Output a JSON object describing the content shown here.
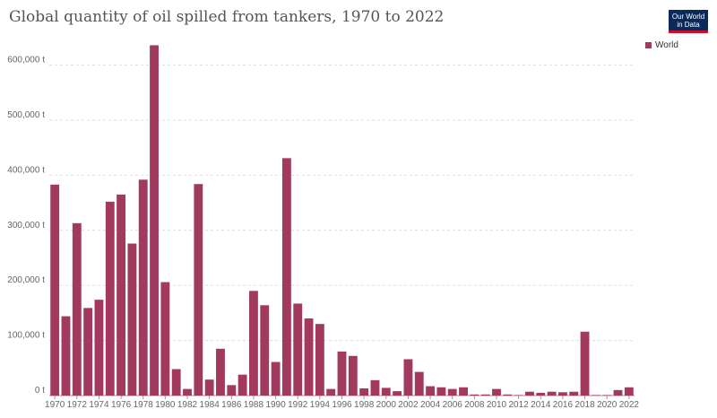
{
  "title": "Global quantity of oil spilled from tankers, 1970 to 2022",
  "logo": {
    "line1": "Our World",
    "line2": "in Data"
  },
  "legend": {
    "label": "World"
  },
  "colors": {
    "bar": "#a2395f",
    "grid": "#dddddd",
    "text": "#555555",
    "axis": "#999999"
  },
  "chart_data": {
    "type": "bar",
    "title": "Global quantity of oil spilled from tankers, 1970 to 2022",
    "xlabel": "",
    "ylabel": "",
    "ylim": [
      0,
      640000
    ],
    "yticks": [
      0,
      100000,
      200000,
      300000,
      400000,
      500000,
      600000
    ],
    "ytick_labels": [
      "0 t",
      "100,000 t",
      "200,000 t",
      "300,000 t",
      "400,000 t",
      "500,000 t",
      "600,000 t"
    ],
    "xtick_labels": [
      "1970",
      "1972",
      "1974",
      "1976",
      "1978",
      "1980",
      "1982",
      "1984",
      "1986",
      "1988",
      "1990",
      "1992",
      "1994",
      "1996",
      "1998",
      "2000",
      "2002",
      "2004",
      "2006",
      "2008",
      "2010",
      "2012",
      "2014",
      "2016",
      "2018",
      "2020",
      "2022"
    ],
    "grid": true,
    "legend_position": "top-right",
    "categories": [
      1970,
      1971,
      1972,
      1973,
      1974,
      1975,
      1976,
      1977,
      1978,
      1979,
      1980,
      1981,
      1982,
      1983,
      1984,
      1985,
      1986,
      1987,
      1988,
      1989,
      1990,
      1991,
      1992,
      1993,
      1994,
      1995,
      1996,
      1997,
      1998,
      1999,
      2000,
      2001,
      2002,
      2003,
      2004,
      2005,
      2006,
      2007,
      2008,
      2009,
      2010,
      2011,
      2012,
      2013,
      2014,
      2015,
      2016,
      2017,
      2018,
      2019,
      2020,
      2021,
      2022
    ],
    "series": [
      {
        "name": "World",
        "values": [
          383000,
          144000,
          313000,
          159000,
          174000,
          352000,
          365000,
          276000,
          392000,
          636000,
          206000,
          48000,
          12000,
          384000,
          29000,
          85000,
          19000,
          38000,
          190000,
          164000,
          61000,
          431000,
          167000,
          140000,
          130000,
          12000,
          80000,
          72000,
          13000,
          28000,
          14000,
          8000,
          66000,
          43000,
          17000,
          15000,
          12000,
          15000,
          2000,
          2000,
          12000,
          2000,
          1000,
          7000,
          5000,
          7000,
          6000,
          7000,
          116000,
          1000,
          1000,
          10000,
          15000
        ]
      }
    ]
  }
}
